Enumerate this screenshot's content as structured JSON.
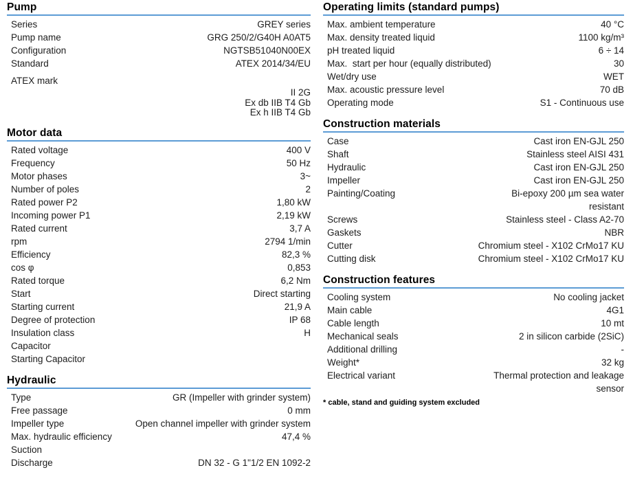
{
  "accent_color": "#5b9bd5",
  "text_color": "#1c1c1c",
  "columns": {
    "left": {
      "sections": [
        {
          "title": "Pump",
          "rows": [
            {
              "label": "Series",
              "value": "GREY series"
            },
            {
              "label": "Pump name",
              "value": "GRG 250/2/G40H A0AT5"
            },
            {
              "label": "Configuration",
              "value": "NGTSB51040N00EX"
            },
            {
              "label": "Standard",
              "value": "ATEX 2014/34/EU"
            },
            {
              "label": "ATEX mark",
              "value": "II 2G\nEx db IIB T4 Gb\nEx h IIB T4 Gb",
              "gap_before": true,
              "stacked": true
            }
          ]
        },
        {
          "title": "Motor data",
          "rows": [
            {
              "label": "Rated voltage",
              "value": "400 V"
            },
            {
              "label": "Frequency",
              "value": "50 Hz"
            },
            {
              "label": "Motor phases",
              "value": "3~"
            },
            {
              "label": "Number of poles",
              "value": "2"
            },
            {
              "label": "Rated power P2",
              "value": "1,80 kW"
            },
            {
              "label": "Incoming power P1",
              "value": "2,19 kW"
            },
            {
              "label": "Rated current",
              "value": "3,7 A"
            },
            {
              "label": "rpm",
              "value": "2794 1/min"
            },
            {
              "label": "Efficiency",
              "value": "82,3 %"
            },
            {
              "label": "cos φ",
              "value": "0,853"
            },
            {
              "label": "Rated torque",
              "value": "6,2 Nm"
            },
            {
              "label": "Start",
              "value": "Direct starting"
            },
            {
              "label": "Starting current",
              "value": "21,9 A"
            },
            {
              "label": "Degree of protection",
              "value": "IP 68"
            },
            {
              "label": "Insulation class",
              "value": "H"
            },
            {
              "label": "Capacitor",
              "value": ""
            },
            {
              "label": "Starting Capacitor",
              "value": ""
            }
          ]
        },
        {
          "title": "Hydraulic",
          "rows": [
            {
              "label": "Type",
              "value": "GR (Impeller with grinder system)"
            },
            {
              "label": "Free passage",
              "value": "0 mm"
            },
            {
              "label": "Impeller type",
              "value": "Open channel impeller with grinder system"
            },
            {
              "label": "Max. hydraulic efficiency",
              "value": "47,4 %"
            },
            {
              "label": "Suction",
              "value": ""
            },
            {
              "label": "Discharge",
              "value": "DN 32 - G 1\"1/2 EN 1092-2"
            }
          ]
        }
      ]
    },
    "right": {
      "sections": [
        {
          "title": "Operating limits (standard pumps)",
          "rows": [
            {
              "label": "Max. ambient temperature",
              "value": "40 °C"
            },
            {
              "label": "Max. density treated liquid",
              "value": "1100 kg/m³"
            },
            {
              "label": "pH treated liquid",
              "value": "6 ÷ 14"
            },
            {
              "label": "Max.  start per hour (equally distributed)",
              "value": "30"
            },
            {
              "label": "Wet/dry use",
              "value": "WET"
            },
            {
              "label": "Max. acoustic pressure level",
              "value": "70 dB"
            },
            {
              "label": "Operating mode",
              "value": "S1 - Continuous use"
            }
          ]
        },
        {
          "title": "Construction materials",
          "rows": [
            {
              "label": "Case",
              "value": "Cast iron EN-GJL 250"
            },
            {
              "label": "Shaft",
              "value": "Stainless steel AISI 431"
            },
            {
              "label": "Hydraulic",
              "value": "Cast iron EN-GJL 250"
            },
            {
              "label": "Impeller",
              "value": "Cast iron EN-GJL 250"
            },
            {
              "label": "Painting/Coating",
              "value": "Bi-epoxy 200 µm sea water\nresistant"
            },
            {
              "label": "Screws",
              "value": "Stainless steel - Class A2-70"
            },
            {
              "label": "Gaskets",
              "value": "NBR"
            },
            {
              "label": "Cutter",
              "value": "Chromium steel - X102 CrMo17 KU"
            },
            {
              "label": "Cutting disk",
              "value": "Chromium steel - X102 CrMo17 KU"
            }
          ]
        },
        {
          "title": "Construction features",
          "rows": [
            {
              "label": "Cooling system",
              "value": "No cooling jacket"
            },
            {
              "label": "Main cable",
              "value": "4G1"
            },
            {
              "label": "Cable length",
              "value": "10 mt"
            },
            {
              "label": "Mechanical seals",
              "value": "2 in silicon carbide (2SiC)"
            },
            {
              "label": "Additional drilling",
              "value": "-"
            },
            {
              "label": "Weight*",
              "value": "32 kg"
            },
            {
              "label": "Electrical variant",
              "value": "Thermal protection and leakage\nsensor"
            }
          ],
          "footnote": "* cable, stand and guiding system excluded"
        }
      ]
    }
  }
}
